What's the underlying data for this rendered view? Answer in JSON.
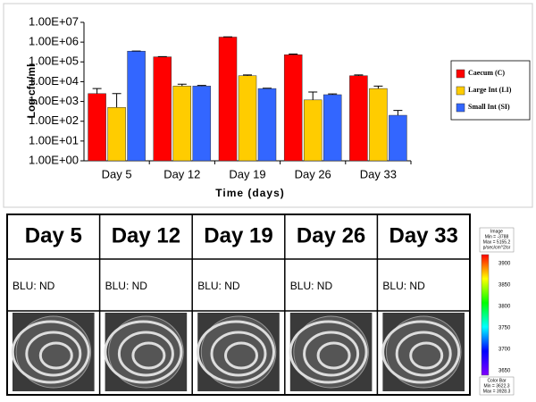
{
  "chart_data": {
    "type": "bar",
    "log_scale": true,
    "y_label": "Log cfu/ml",
    "x_label": "Time (days)",
    "categories": [
      "Day 5",
      "Day 12",
      "Day 19",
      "Day 26",
      "Day 33"
    ],
    "series": [
      {
        "name": "Caecum (C)",
        "color": "#ff0000",
        "values": [
          2500,
          180000,
          1800000,
          230000,
          20000
        ],
        "errors": [
          2000,
          5000,
          50000,
          20000,
          2000
        ]
      },
      {
        "name": "Large Int (LI)",
        "color": "#ffcc00",
        "values": [
          500,
          6000,
          20000,
          1200,
          4500
        ],
        "errors": [
          2000,
          1500,
          2000,
          1800,
          1500
        ]
      },
      {
        "name": "Small Int (SI)",
        "color": "#3366ff",
        "values": [
          350000,
          6000,
          4500,
          2200,
          200
        ],
        "errors": [
          5000,
          500,
          200,
          200,
          150
        ]
      }
    ],
    "ylim": [
      1,
      10000000
    ],
    "yticks": [
      {
        "value": 1,
        "label": "1.00E+00"
      },
      {
        "value": 10,
        "label": "1.00E+01"
      },
      {
        "value": 100,
        "label": "1.00E+02"
      },
      {
        "value": 1000,
        "label": "1.00E+03"
      },
      {
        "value": 10000,
        "label": "1.00E+04"
      },
      {
        "value": 100000,
        "label": "1.00E+05"
      },
      {
        "value": 1000000,
        "label": "1.00E+06"
      },
      {
        "value": 10000000,
        "label": "1.00E+07"
      }
    ],
    "legend": "right"
  },
  "panel": {
    "headers": [
      "Day 5",
      "Day 12",
      "Day 19",
      "Day 26",
      "Day 33"
    ],
    "readings": [
      "BLU: ND",
      "BLU: ND",
      "BLU: ND",
      "BLU: ND",
      "BLU: ND"
    ],
    "color_scale": {
      "header_lines": [
        "Image",
        "Min = -3788",
        "Max = 5155.2",
        "p/sec/cm^2/sr"
      ],
      "ticks": [
        3900,
        3850,
        3800,
        3750,
        3700,
        3650
      ],
      "footer_lines": [
        "Color Bar",
        "Min = 3622.3",
        "Max = 3928.3"
      ]
    }
  }
}
